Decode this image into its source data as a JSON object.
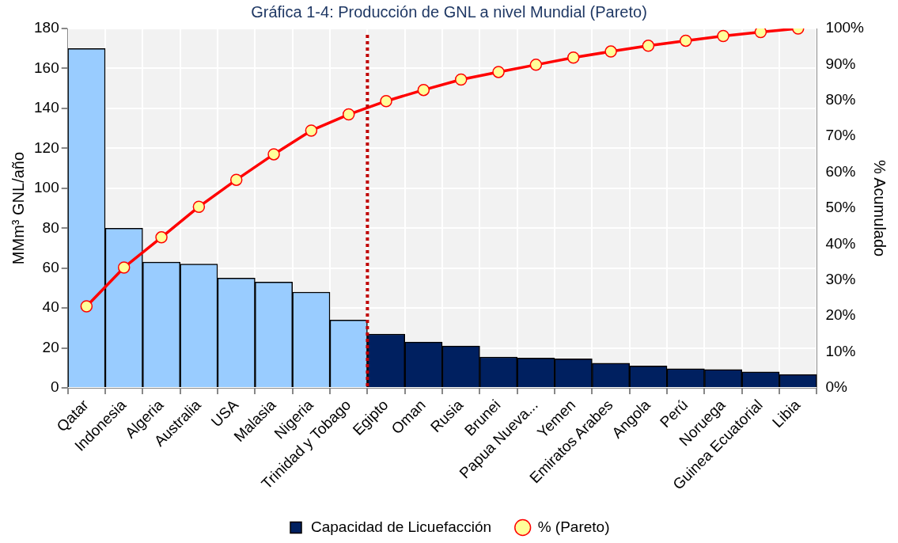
{
  "chart_data": {
    "type": "bar",
    "title": "Gráfica 1-4: Producción de GNL a nivel Mundial (Pareto)",
    "ylabel": "MMm³ GNL/año",
    "y2label": "% Acumulado",
    "categories": [
      "Qatar",
      "Indonesia",
      "Algeria",
      "Australia",
      "USA",
      "Malasia",
      "Nigeria",
      "Trinidad y Tobago",
      "Egipto",
      "Oman",
      "Rusia",
      "Brunei",
      "Papua Nueva...",
      "Yemen",
      "Emiratos Arabes",
      "Angola",
      "Perú",
      "Noruega",
      "Guinea Ecuatorial",
      "Libia"
    ],
    "series": [
      {
        "name": "Capacidad de Licuefacción",
        "color": "#002060",
        "colors": [
          "#99ccff",
          "#99ccff",
          "#99ccff",
          "#99ccff",
          "#99ccff",
          "#99ccff",
          "#99ccff",
          "#99ccff",
          "#002060",
          "#002060",
          "#002060",
          "#002060",
          "#002060",
          "#002060",
          "#002060",
          "#002060",
          "#002060",
          "#002060",
          "#002060",
          "#002060"
        ],
        "values": [
          170,
          80,
          63,
          62,
          55,
          53,
          48,
          34,
          27,
          23,
          21,
          15.5,
          15,
          14.6,
          12.4,
          11,
          9.6,
          9.2,
          8,
          6.7
        ]
      },
      {
        "name": "% (Pareto)",
        "type": "line",
        "axis": "y2",
        "color": "#ff0000",
        "values": [
          22.7,
          33.5,
          41.9,
          50.4,
          57.9,
          65,
          71.6,
          76.1,
          79.8,
          82.9,
          85.8,
          87.9,
          89.9,
          91.9,
          93.6,
          95.2,
          96.6,
          97.9,
          99,
          100
        ]
      }
    ],
    "ylim": [
      0,
      180
    ],
    "yticks": [
      0,
      20,
      40,
      60,
      80,
      100,
      120,
      140,
      160,
      180
    ],
    "y2lim": [
      0,
      100
    ],
    "y2ticks": [
      {
        "value": 0,
        "label": "0%"
      },
      {
        "value": 10,
        "label": "10%"
      },
      {
        "value": 20,
        "label": "20%"
      },
      {
        "value": 30,
        "label": "30%"
      },
      {
        "value": 40,
        "label": "40%"
      },
      {
        "value": 50,
        "label": "50%"
      },
      {
        "value": 60,
        "label": "60%"
      },
      {
        "value": 70,
        "label": "70%"
      },
      {
        "value": 80,
        "label": "80%"
      },
      {
        "value": 90,
        "label": "90%"
      },
      {
        "value": 100,
        "label": "100%"
      }
    ],
    "ref_lines": [
      {
        "axis": "x",
        "value": "Trinidad y Tobago",
        "color": "#c00000",
        "line_style": "dotted"
      }
    ],
    "grid": true,
    "legend": "bottom",
    "marker": "circle",
    "line_style": "solid"
  }
}
